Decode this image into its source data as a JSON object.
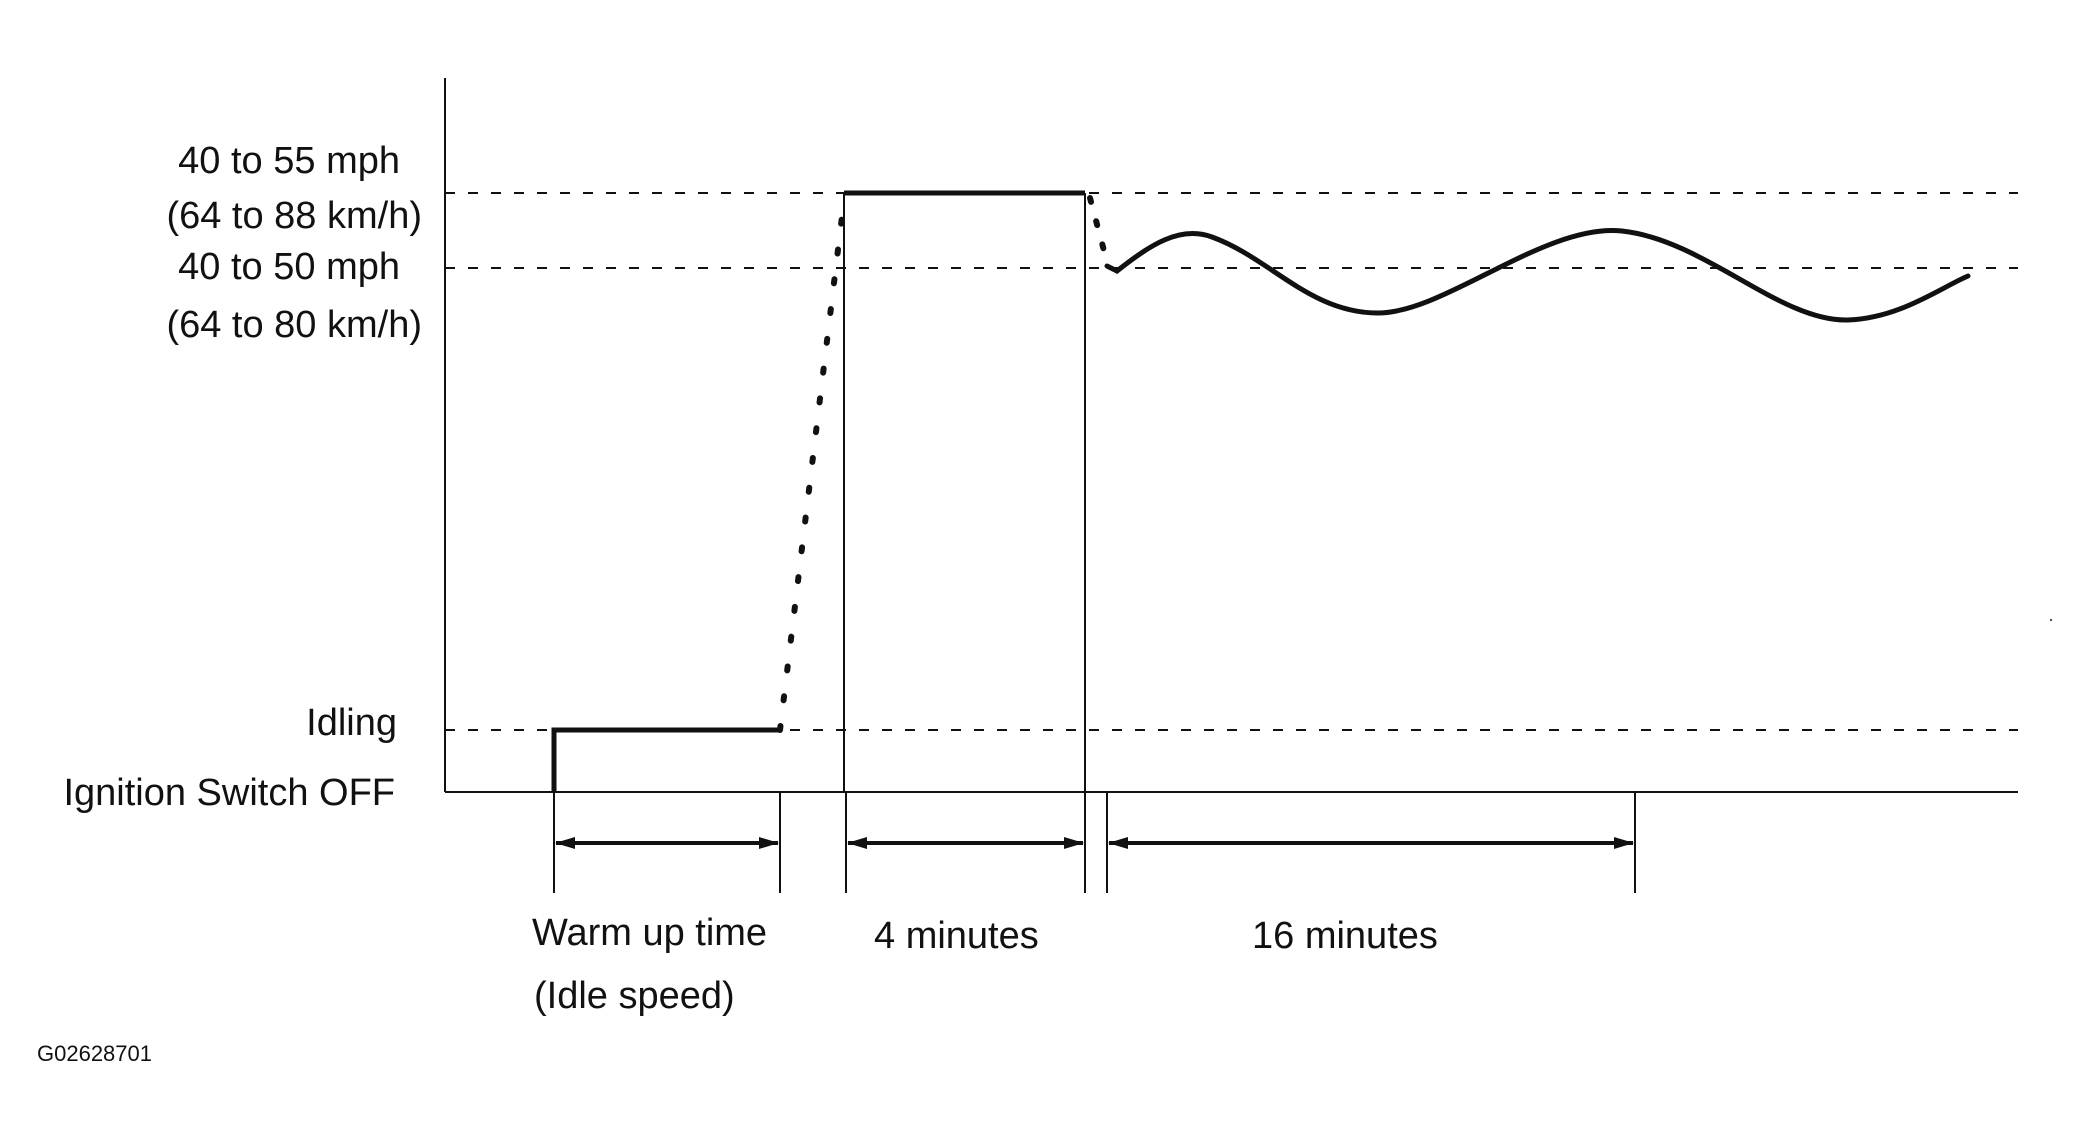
{
  "levels": {
    "high_mph": "40 to 55 mph",
    "high_kmh": "(64 to 88 km/h)",
    "mid_mph": "40 to 50 mph",
    "mid_kmh": "(64 to 80 km/h)",
    "idle": "Idling",
    "off": "Ignition Switch OFF"
  },
  "intervals": {
    "warmup_line1": "Warm up time",
    "warmup_line2": "(Idle speed)",
    "first": "4 minutes",
    "second": "16 minutes"
  },
  "figure_id": "G02628701",
  "colors": {
    "line": "#111111",
    "background": "#ffffff"
  }
}
